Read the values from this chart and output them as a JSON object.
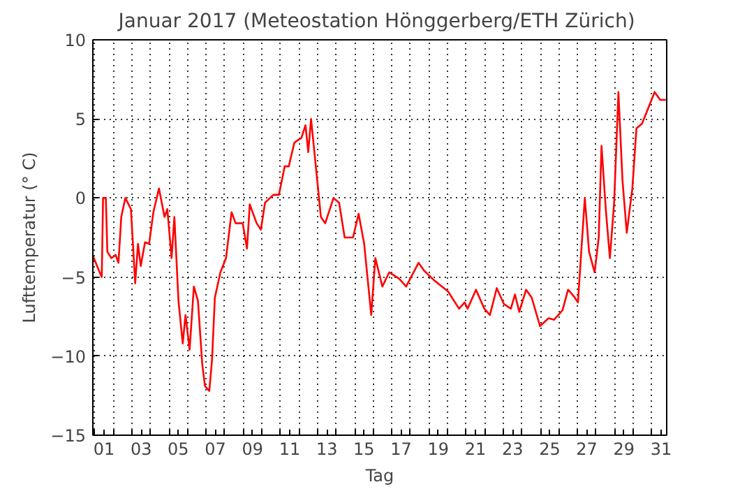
{
  "chart_data": {
    "type": "line",
    "title": "Januar 2017  (Meteostation Hönggerberg/ETH Zürich)",
    "xlabel": "Tag",
    "ylabel": "Lufttemperatur (° C)",
    "xlim": [
      0.9,
      31.8
    ],
    "ylim": [
      -15,
      10
    ],
    "yticks": [
      -15,
      -10,
      -5,
      0,
      5,
      10
    ],
    "xticks": [
      {
        "value": 1,
        "label": null
      },
      {
        "value": 2,
        "label": null
      },
      {
        "value": 3,
        "label": null
      },
      {
        "value": 4,
        "label": null
      },
      {
        "value": 5,
        "label": null
      },
      {
        "value": 6,
        "label": null
      },
      {
        "value": 7,
        "label": null
      },
      {
        "value": 8,
        "label": null
      },
      {
        "value": 9,
        "label": null
      },
      {
        "value": 10,
        "label": null
      },
      {
        "value": 11,
        "label": null
      },
      {
        "value": 12,
        "label": null
      },
      {
        "value": 13,
        "label": null
      },
      {
        "value": 14,
        "label": null
      },
      {
        "value": 15,
        "label": null
      },
      {
        "value": 16,
        "label": null
      },
      {
        "value": 17,
        "label": null
      },
      {
        "value": 18,
        "label": null
      },
      {
        "value": 19,
        "label": null
      },
      {
        "value": 20,
        "label": null
      },
      {
        "value": 21,
        "label": null
      },
      {
        "value": 22,
        "label": null
      },
      {
        "value": 23,
        "label": null
      },
      {
        "value": 24,
        "label": null
      },
      {
        "value": 25,
        "label": null
      },
      {
        "value": 26,
        "label": null
      },
      {
        "value": 27,
        "label": null
      },
      {
        "value": 28,
        "label": null
      },
      {
        "value": 29,
        "label": null
      },
      {
        "value": 30,
        "label": null
      },
      {
        "value": 31,
        "label": null
      },
      {
        "value": 1.5,
        "label": "01"
      },
      {
        "value": 3.5,
        "label": "03"
      },
      {
        "value": 5.5,
        "label": "05"
      },
      {
        "value": 7.5,
        "label": "07"
      },
      {
        "value": 9.5,
        "label": "09"
      },
      {
        "value": 11.5,
        "label": "11"
      },
      {
        "value": 13.5,
        "label": "13"
      },
      {
        "value": 15.5,
        "label": "15"
      },
      {
        "value": 17.5,
        "label": "17"
      },
      {
        "value": 19.5,
        "label": "19"
      },
      {
        "value": 21.5,
        "label": "21"
      },
      {
        "value": 23.5,
        "label": "23"
      },
      {
        "value": 25.5,
        "label": "25"
      },
      {
        "value": 27.5,
        "label": "27"
      },
      {
        "value": 29.5,
        "label": "29"
      },
      {
        "value": 31.5,
        "label": "31"
      }
    ],
    "grid": true,
    "line_style": "solid",
    "series": [
      {
        "color": "#ff0000",
        "x": [
          0.92,
          1.23,
          1.38,
          1.45,
          1.6,
          1.68,
          1.9,
          2.13,
          2.28,
          2.43,
          2.65,
          2.95,
          3.18,
          3.33,
          3.48,
          3.71,
          3.93,
          4.16,
          4.46,
          4.76,
          4.91,
          5.14,
          5.29,
          5.51,
          5.74,
          5.89,
          6.11,
          6.34,
          6.56,
          6.79,
          6.94,
          7.17,
          7.32,
          7.47,
          7.77,
          8.07,
          8.37,
          8.59,
          8.97,
          9.2,
          9.35,
          9.72,
          9.95,
          10.17,
          10.62,
          10.92,
          11.23,
          11.45,
          11.75,
          12.13,
          12.35,
          12.5,
          12.65,
          12.95,
          13.18,
          13.41,
          13.86,
          14.16,
          14.46,
          14.91,
          15.21,
          15.51,
          15.89,
          16.11,
          16.49,
          16.86,
          17.39,
          17.77,
          18.44,
          18.74,
          19.27,
          20.02,
          20.62,
          20.92,
          21.08,
          21.53,
          21.98,
          22.28,
          22.65,
          23.03,
          23.41,
          23.63,
          23.86,
          24.23,
          24.53,
          24.98,
          25.44,
          25.74,
          26.19,
          26.49,
          26.79,
          27.02,
          27.39,
          27.62,
          27.92,
          28.14,
          28.29,
          28.52,
          28.74,
          28.97,
          29.2,
          29.42,
          29.65,
          29.95,
          30.17,
          30.47,
          30.85,
          31.15,
          31.45,
          31.75
        ],
        "values": [
          -3.7,
          -4.6,
          -5.0,
          0.0,
          0.0,
          -3.4,
          -3.8,
          -3.6,
          -4.1,
          -1.2,
          0.0,
          -0.7,
          -5.4,
          -2.9,
          -4.3,
          -2.8,
          -2.9,
          -0.9,
          0.6,
          -1.2,
          -0.7,
          -3.8,
          -1.2,
          -6.5,
          -9.2,
          -7.4,
          -9.6,
          -5.6,
          -6.5,
          -10.5,
          -11.9,
          -12.2,
          -10.2,
          -6.3,
          -4.7,
          -3.8,
          -0.9,
          -1.6,
          -1.6,
          -3.2,
          -0.4,
          -1.6,
          -2.0,
          -0.3,
          0.2,
          0.2,
          2.0,
          2.0,
          3.5,
          3.8,
          4.6,
          2.9,
          5.0,
          1.5,
          -1.2,
          -1.6,
          0.0,
          -0.3,
          -2.5,
          -2.5,
          -1.0,
          -2.9,
          -7.4,
          -3.8,
          -5.6,
          -4.7,
          -5.1,
          -5.6,
          -4.1,
          -4.6,
          -5.2,
          -5.9,
          -7.0,
          -6.6,
          -7.0,
          -5.8,
          -7.0,
          -7.4,
          -5.7,
          -6.7,
          -7.0,
          -6.1,
          -7.2,
          -5.8,
          -6.3,
          -8.1,
          -7.6,
          -7.7,
          -7.1,
          -5.8,
          -6.2,
          -6.6,
          0.0,
          -3.4,
          -4.7,
          -2.5,
          3.3,
          -0.7,
          -3.8,
          -0.3,
          6.7,
          1.1,
          -2.2,
          0.6,
          4.4,
          4.7,
          5.8,
          6.7,
          6.2,
          6.2
        ]
      }
    ]
  }
}
